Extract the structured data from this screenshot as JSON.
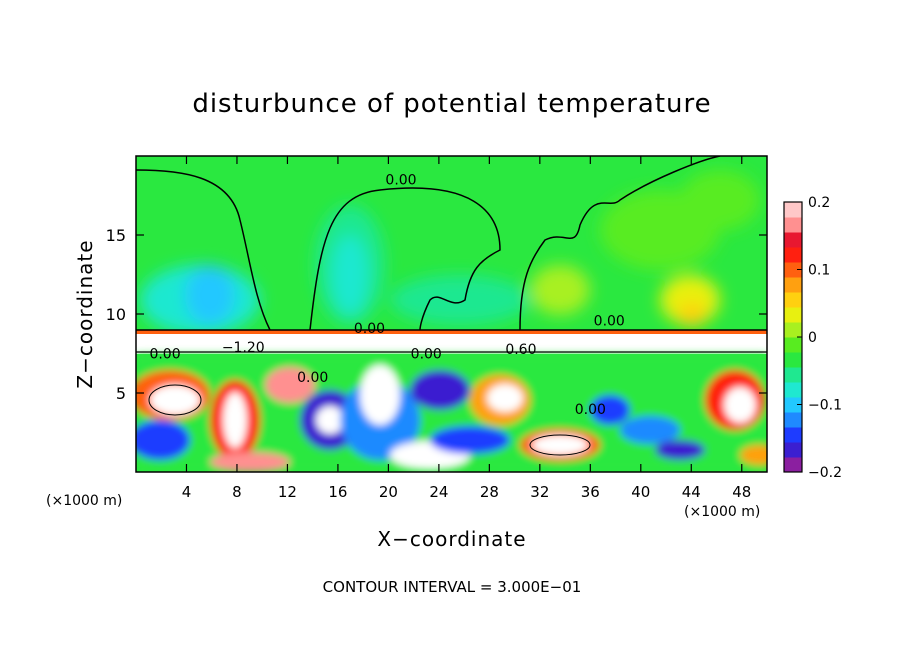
{
  "chart_data": {
    "type": "heatmap",
    "title": "disturbunce of potential temperature",
    "xlabel": "X−coordinate",
    "ylabel": "Z−coordinate",
    "x_unit_left": "(×1000 m)",
    "x_unit_right": "(×1000 m)",
    "footer": "CONTOUR INTERVAL = 3.000E−01",
    "xlim": [
      0,
      50
    ],
    "ylim": [
      0,
      20
    ],
    "x_ticks": [
      4,
      8,
      12,
      16,
      20,
      24,
      28,
      32,
      36,
      40,
      44,
      48
    ],
    "x_tick_labels": [
      "4",
      "8",
      "12",
      "16",
      "20",
      "24",
      "28",
      "32",
      "36",
      "40",
      "44",
      "48"
    ],
    "y_ticks": [
      5,
      10,
      15
    ],
    "y_tick_labels": [
      "5",
      "10",
      "15"
    ],
    "colorbar": {
      "range": [
        -0.2,
        0.2
      ],
      "ticks": [
        0.2,
        0.1,
        0,
        -0.1,
        -0.2
      ],
      "tick_labels": [
        "0.2",
        "0.1",
        "0",
        "−0.1",
        "−0.2"
      ],
      "colors": [
        "#8b1fa0",
        "#3b1fd0",
        "#1e3cff",
        "#1f8aff",
        "#22c8ff",
        "#1fe8d0",
        "#1fe890",
        "#2ae840",
        "#58ec20",
        "#a8f020",
        "#e8f010",
        "#ffd010",
        "#ffa010",
        "#ff6010",
        "#ff2010",
        "#e81830",
        "#ff9090",
        "#ffc8c8"
      ]
    },
    "contour_labels": [
      {
        "text": "0.00",
        "x": 21,
        "y": 18.5
      },
      {
        "text": "0.00",
        "x": 18.5,
        "y": 9.1
      },
      {
        "text": "−1.20",
        "x": 8.5,
        "y": 7.9
      },
      {
        "text": "0.00",
        "x": 2.3,
        "y": 7.5
      },
      {
        "text": "0.00",
        "x": 23,
        "y": 7.5
      },
      {
        "text": "0.60",
        "x": 30.5,
        "y": 7.8
      },
      {
        "text": "0.00",
        "x": 14,
        "y": 6.0
      },
      {
        "text": "0.00",
        "x": 36,
        "y": 4.0
      },
      {
        "text": "0.00",
        "x": 37.5,
        "y": 9.6
      }
    ]
  }
}
